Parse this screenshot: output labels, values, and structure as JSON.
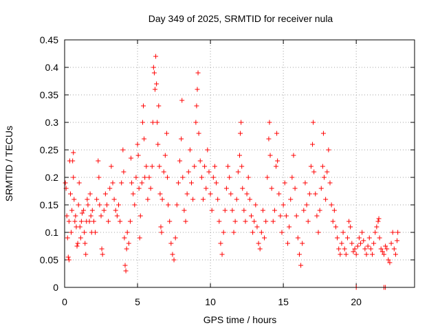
{
  "chart_data": {
    "type": "scatter",
    "title": "Day 349 of 2025, SRMTID for receiver nula",
    "xlabel": "GPS time / hours",
    "ylabel": "SRMTID / TECUs",
    "xlim": [
      0,
      24
    ],
    "ylim": [
      0,
      0.45
    ],
    "xticks": [
      0,
      5,
      10,
      15,
      20
    ],
    "xtick_labels": [
      "0",
      "5",
      "10",
      "15",
      "20"
    ],
    "yticks": [
      0,
      0.05,
      0.1,
      0.15,
      0.2,
      0.25,
      0.3,
      0.35,
      0.4,
      0.45
    ],
    "ytick_labels": [
      "0",
      "0.05",
      "0.1",
      "0.15",
      "0.2",
      "0.25",
      "0.3",
      "0.35",
      "0.4",
      "0.45"
    ],
    "grid": true,
    "marker": "+",
    "color": "#ff0000",
    "series": [
      {
        "name": "SRMTID",
        "points": [
          [
            0.05,
            0.19
          ],
          [
            0.1,
            0.18
          ],
          [
            0.15,
            0.13
          ],
          [
            0.2,
            0.09
          ],
          [
            0.25,
            0.055
          ],
          [
            0.3,
            0.05
          ],
          [
            0.3,
            0.12
          ],
          [
            0.35,
            0.23
          ],
          [
            0.4,
            0.17
          ],
          [
            0.45,
            0.1
          ],
          [
            0.5,
            0.14
          ],
          [
            0.55,
            0.23
          ],
          [
            0.6,
            0.245
          ],
          [
            0.6,
            0.2
          ],
          [
            0.65,
            0.16
          ],
          [
            0.7,
            0.12
          ],
          [
            0.75,
            0.13
          ],
          [
            0.8,
            0.11
          ],
          [
            0.85,
            0.075
          ],
          [
            0.9,
            0.08
          ],
          [
            0.95,
            0.15
          ],
          [
            1.0,
            0.19
          ],
          [
            1.05,
            0.11
          ],
          [
            1.1,
            0.09
          ],
          [
            1.15,
            0.12
          ],
          [
            1.2,
            0.135
          ],
          [
            1.3,
            0.14
          ],
          [
            1.35,
            0.1
          ],
          [
            1.4,
            0.08
          ],
          [
            1.45,
            0.06
          ],
          [
            1.5,
            0.12
          ],
          [
            1.55,
            0.16
          ],
          [
            1.6,
            0.15
          ],
          [
            1.7,
            0.12
          ],
          [
            1.75,
            0.17
          ],
          [
            1.8,
            0.13
          ],
          [
            1.85,
            0.1
          ],
          [
            1.9,
            0.14
          ],
          [
            2.0,
            0.12
          ],
          [
            2.1,
            0.1
          ],
          [
            2.2,
            0.16
          ],
          [
            2.3,
            0.23
          ],
          [
            2.35,
            0.2
          ],
          [
            2.4,
            0.15
          ],
          [
            2.5,
            0.13
          ],
          [
            2.55,
            0.07
          ],
          [
            2.6,
            0.06
          ],
          [
            2.7,
            0.14
          ],
          [
            2.8,
            0.17
          ],
          [
            2.9,
            0.15
          ],
          [
            3.0,
            0.12
          ],
          [
            3.1,
            0.18
          ],
          [
            3.2,
            0.22
          ],
          [
            3.3,
            0.19
          ],
          [
            3.4,
            0.16
          ],
          [
            3.5,
            0.14
          ],
          [
            3.6,
            0.13
          ],
          [
            3.7,
            0.15
          ],
          [
            3.8,
            0.12
          ],
          [
            3.9,
            0.19
          ],
          [
            4.0,
            0.25
          ],
          [
            4.05,
            0.21
          ],
          [
            4.1,
            0.09
          ],
          [
            4.15,
            0.04
          ],
          [
            4.2,
            0.03
          ],
          [
            4.25,
            0.07
          ],
          [
            4.3,
            0.1
          ],
          [
            4.4,
            0.08
          ],
          [
            4.5,
            0.12
          ],
          [
            4.55,
            0.235
          ],
          [
            4.6,
            0.19
          ],
          [
            4.7,
            0.17
          ],
          [
            4.8,
            0.15
          ],
          [
            4.9,
            0.2
          ],
          [
            5.0,
            0.26
          ],
          [
            5.05,
            0.24
          ],
          [
            5.1,
            0.18
          ],
          [
            5.15,
            0.09
          ],
          [
            5.2,
            0.13
          ],
          [
            5.3,
            0.19
          ],
          [
            5.35,
            0.3
          ],
          [
            5.4,
            0.33
          ],
          [
            5.45,
            0.27
          ],
          [
            5.5,
            0.2
          ],
          [
            5.6,
            0.22
          ],
          [
            5.7,
            0.16
          ],
          [
            5.8,
            0.2
          ],
          [
            5.9,
            0.18
          ],
          [
            6.0,
            0.22
          ],
          [
            6.05,
            0.3
          ],
          [
            6.1,
            0.4
          ],
          [
            6.15,
            0.39
          ],
          [
            6.2,
            0.36
          ],
          [
            6.25,
            0.42
          ],
          [
            6.3,
            0.37
          ],
          [
            6.35,
            0.3
          ],
          [
            6.4,
            0.26
          ],
          [
            6.45,
            0.33
          ],
          [
            6.5,
            0.22
          ],
          [
            6.55,
            0.17
          ],
          [
            6.6,
            0.11
          ],
          [
            6.65,
            0.1
          ],
          [
            6.7,
            0.16
          ],
          [
            6.8,
            0.21
          ],
          [
            6.9,
            0.24
          ],
          [
            7.0,
            0.28
          ],
          [
            7.05,
            0.2
          ],
          [
            7.1,
            0.15
          ],
          [
            7.2,
            0.12
          ],
          [
            7.3,
            0.08
          ],
          [
            7.4,
            0.06
          ],
          [
            7.5,
            0.05
          ],
          [
            7.6,
            0.09
          ],
          [
            7.7,
            0.15
          ],
          [
            7.8,
            0.19
          ],
          [
            7.9,
            0.23
          ],
          [
            8.0,
            0.27
          ],
          [
            8.05,
            0.34
          ],
          [
            8.1,
            0.2
          ],
          [
            8.2,
            0.14
          ],
          [
            8.3,
            0.12
          ],
          [
            8.4,
            0.17
          ],
          [
            8.5,
            0.21
          ],
          [
            8.6,
            0.25
          ],
          [
            8.7,
            0.19
          ],
          [
            8.8,
            0.16
          ],
          [
            8.9,
            0.22
          ],
          [
            9.0,
            0.3
          ],
          [
            9.05,
            0.33
          ],
          [
            9.1,
            0.36
          ],
          [
            9.15,
            0.39
          ],
          [
            9.2,
            0.28
          ],
          [
            9.3,
            0.23
          ],
          [
            9.4,
            0.2
          ],
          [
            9.5,
            0.16
          ],
          [
            9.6,
            0.22
          ],
          [
            9.7,
            0.18
          ],
          [
            9.8,
            0.25
          ],
          [
            9.9,
            0.21
          ],
          [
            10.0,
            0.17
          ],
          [
            10.1,
            0.14
          ],
          [
            10.2,
            0.2
          ],
          [
            10.3,
            0.22
          ],
          [
            10.4,
            0.19
          ],
          [
            10.5,
            0.16
          ],
          [
            10.6,
            0.12
          ],
          [
            10.7,
            0.08
          ],
          [
            10.8,
            0.06
          ],
          [
            10.9,
            0.1
          ],
          [
            11.0,
            0.14
          ],
          [
            11.1,
            0.18
          ],
          [
            11.2,
            0.22
          ],
          [
            11.3,
            0.2
          ],
          [
            11.4,
            0.17
          ],
          [
            11.5,
            0.14
          ],
          [
            11.6,
            0.1
          ],
          [
            11.7,
            0.12
          ],
          [
            11.8,
            0.16
          ],
          [
            11.9,
            0.21
          ],
          [
            12.0,
            0.24
          ],
          [
            12.05,
            0.28
          ],
          [
            12.1,
            0.3
          ],
          [
            12.15,
            0.22
          ],
          [
            12.2,
            0.18
          ],
          [
            12.3,
            0.14
          ],
          [
            12.4,
            0.12
          ],
          [
            12.5,
            0.17
          ],
          [
            12.6,
            0.2
          ],
          [
            12.7,
            0.16
          ],
          [
            12.8,
            0.13
          ],
          [
            12.9,
            0.1
          ],
          [
            13.0,
            0.12
          ],
          [
            13.1,
            0.15
          ],
          [
            13.2,
            0.11
          ],
          [
            13.3,
            0.08
          ],
          [
            13.4,
            0.07
          ],
          [
            13.5,
            0.1
          ],
          [
            13.6,
            0.14
          ],
          [
            13.7,
            0.09
          ],
          [
            13.8,
            0.12
          ],
          [
            13.9,
            0.2
          ],
          [
            14.0,
            0.27
          ],
          [
            14.05,
            0.3
          ],
          [
            14.1,
            0.24
          ],
          [
            14.2,
            0.18
          ],
          [
            14.3,
            0.12
          ],
          [
            14.4,
            0.14
          ],
          [
            14.5,
            0.22
          ],
          [
            14.55,
            0.28
          ],
          [
            14.6,
            0.23
          ],
          [
            14.7,
            0.17
          ],
          [
            14.8,
            0.13
          ],
          [
            14.9,
            0.1
          ],
          [
            15.0,
            0.15
          ],
          [
            15.1,
            0.19
          ],
          [
            15.2,
            0.13
          ],
          [
            15.3,
            0.08
          ],
          [
            15.4,
            0.11
          ],
          [
            15.5,
            0.16
          ],
          [
            15.6,
            0.2
          ],
          [
            15.7,
            0.24
          ],
          [
            15.8,
            0.18
          ],
          [
            15.9,
            0.13
          ],
          [
            16.0,
            0.09
          ],
          [
            16.1,
            0.06
          ],
          [
            16.2,
            0.04
          ],
          [
            16.3,
            0.08
          ],
          [
            16.4,
            0.14
          ],
          [
            16.5,
            0.19
          ],
          [
            16.6,
            0.15
          ],
          [
            16.7,
            0.12
          ],
          [
            16.8,
            0.17
          ],
          [
            16.9,
            0.22
          ],
          [
            17.0,
            0.26
          ],
          [
            17.05,
            0.3
          ],
          [
            17.1,
            0.21
          ],
          [
            17.2,
            0.17
          ],
          [
            17.3,
            0.13
          ],
          [
            17.4,
            0.1
          ],
          [
            17.5,
            0.14
          ],
          [
            17.6,
            0.18
          ],
          [
            17.7,
            0.22
          ],
          [
            17.75,
            0.28
          ],
          [
            17.8,
            0.2
          ],
          [
            17.9,
            0.16
          ],
          [
            18.0,
            0.21
          ],
          [
            18.1,
            0.25
          ],
          [
            18.2,
            0.19
          ],
          [
            18.3,
            0.15
          ],
          [
            18.4,
            0.12
          ],
          [
            18.5,
            0.14
          ],
          [
            18.6,
            0.11
          ],
          [
            18.7,
            0.09
          ],
          [
            18.8,
            0.07
          ],
          [
            18.9,
            0.06
          ],
          [
            19.0,
            0.08
          ],
          [
            19.1,
            0.1
          ],
          [
            19.2,
            0.07
          ],
          [
            19.3,
            0.06
          ],
          [
            19.4,
            0.09
          ],
          [
            19.5,
            0.12
          ],
          [
            19.6,
            0.11
          ],
          [
            19.7,
            0.08
          ],
          [
            19.8,
            0.065
          ],
          [
            19.9,
            0.07
          ],
          [
            20.0,
            0.06
          ],
          [
            20.1,
            0.075
          ],
          [
            20.2,
            0.09
          ],
          [
            20.3,
            0.08
          ],
          [
            20.4,
            0.1
          ],
          [
            20.5,
            0.085
          ],
          [
            20.6,
            0.07
          ],
          [
            20.7,
            0.06
          ],
          [
            20.8,
            0.075
          ],
          [
            20.9,
            0.09
          ],
          [
            21.0,
            0.07
          ],
          [
            21.1,
            0.06
          ],
          [
            21.2,
            0.08
          ],
          [
            21.3,
            0.1
          ],
          [
            21.4,
            0.11
          ],
          [
            21.5,
            0.12
          ],
          [
            21.55,
            0.125
          ],
          [
            21.6,
            0.09
          ],
          [
            21.7,
            0.07
          ],
          [
            21.8,
            0.065
          ],
          [
            21.9,
            0.06
          ],
          [
            22.0,
            0.075
          ],
          [
            22.1,
            0.07
          ],
          [
            22.2,
            0.05
          ],
          [
            22.3,
            0.045
          ],
          [
            22.4,
            0.08
          ],
          [
            22.5,
            0.1
          ],
          [
            22.6,
            0.07
          ],
          [
            22.7,
            0.06
          ],
          [
            22.8,
            0.085
          ],
          [
            22.85,
            0.1
          ],
          [
            20.0,
            0.0
          ],
          [
            21.9,
            0.0
          ],
          [
            22.0,
            0.0
          ]
        ]
      }
    ]
  }
}
